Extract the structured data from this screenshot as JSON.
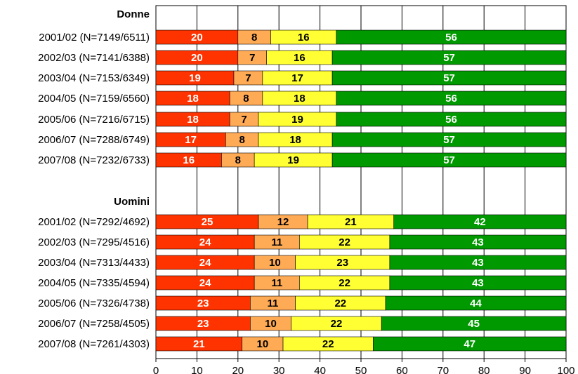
{
  "chart_data": {
    "type": "bar",
    "orientation": "horizontal",
    "stacked": true,
    "xlim": [
      0,
      100
    ],
    "xticks": [
      "0",
      "10",
      "20",
      "30",
      "40",
      "50",
      "60",
      "70",
      "80",
      "90",
      "100"
    ],
    "grid": "vertical",
    "colors": [
      "#ff3300",
      "#ffaa55",
      "#ffff33",
      "#009900"
    ],
    "label_colors": [
      "#ffffff",
      "#000000",
      "#000000",
      "#ffffff"
    ],
    "groups": [
      {
        "name": "Donne",
        "rows": [
          {
            "label": "2001/02 (N=7149/6511)",
            "values": [
              20,
              8,
              16,
              56
            ]
          },
          {
            "label": "2002/03 (N=7141/6388)",
            "values": [
              20,
              7,
              16,
              57
            ]
          },
          {
            "label": "2003/04 (N=7153/6349)",
            "values": [
              19,
              7,
              17,
              57
            ]
          },
          {
            "label": "2004/05 (N=7159/6560)",
            "values": [
              18,
              8,
              18,
              56
            ]
          },
          {
            "label": "2005/06 (N=7216/6715)",
            "values": [
              18,
              7,
              19,
              56
            ]
          },
          {
            "label": "2006/07 (N=7288/6749)",
            "values": [
              17,
              8,
              18,
              57
            ]
          },
          {
            "label": "2007/08 (N=7232/6733)",
            "values": [
              16,
              8,
              19,
              57
            ]
          }
        ]
      },
      {
        "name": "Uomini",
        "rows": [
          {
            "label": "2001/02 (N=7292/4692)",
            "values": [
              25,
              12,
              21,
              42
            ]
          },
          {
            "label": "2002/03 (N=7295/4516)",
            "values": [
              24,
              11,
              22,
              43
            ]
          },
          {
            "label": "2003/04 (N=7313/4433)",
            "values": [
              24,
              10,
              23,
              43
            ]
          },
          {
            "label": "2004/05 (N=7335/4594)",
            "values": [
              24,
              11,
              22,
              43
            ]
          },
          {
            "label": "2005/06 (N=7326/4738)",
            "values": [
              23,
              11,
              22,
              44
            ]
          },
          {
            "label": "2006/07 (N=7258/4505)",
            "values": [
              23,
              10,
              22,
              45
            ]
          },
          {
            "label": "2007/08 (N=7261/4303)",
            "values": [
              21,
              10,
              22,
              47
            ]
          }
        ]
      }
    ]
  }
}
